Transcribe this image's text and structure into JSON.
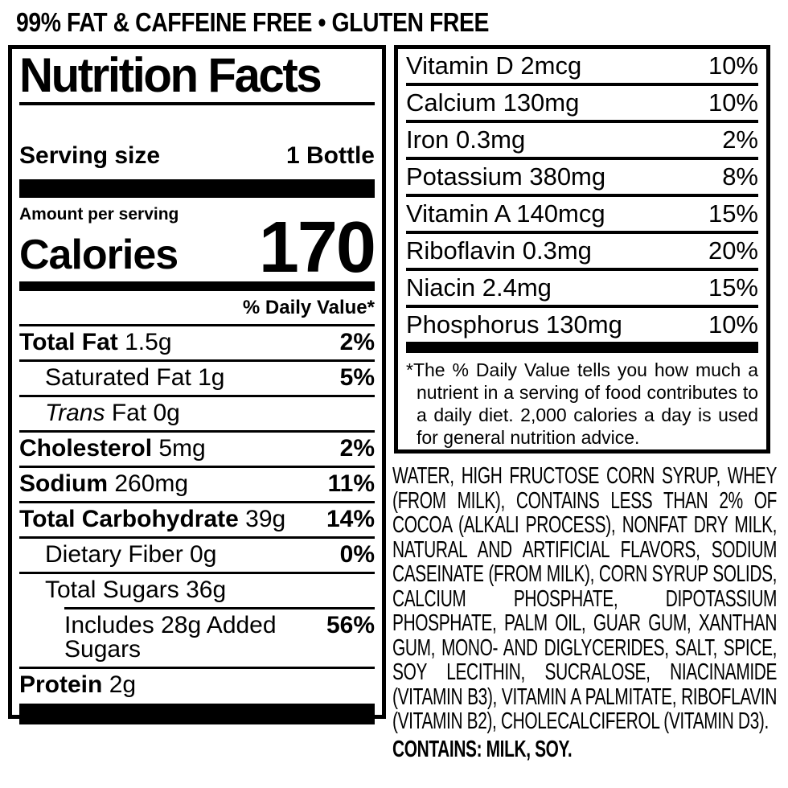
{
  "claim_banner": {
    "text": "99% FAT & CAFFEINE FREE • GLUTEN FREE"
  },
  "nutrition_panel": {
    "title": "Nutrition Facts",
    "serving_size_label": "Serving size",
    "serving_size_value": "1 Bottle",
    "amount_per_serving_label": "Amount per serving",
    "calories_label": "Calories",
    "calories_value": "170",
    "daily_value_header": "% Daily Value*",
    "rows": [
      {
        "bold": "Total Fat",
        "rest": "1.5g",
        "dv": "2%"
      },
      {
        "rest": "Saturated Fat 1g",
        "dv": "5%"
      },
      {
        "italic": "Trans",
        "rest": "Fat 0g",
        "dv": ""
      },
      {
        "bold": "Cholesterol",
        "rest": "5mg",
        "dv": "2%"
      },
      {
        "bold": "Sodium",
        "rest": "260mg",
        "dv": "11%"
      },
      {
        "bold": "Total Carbohydrate",
        "rest": "39g",
        "dv": "14%"
      },
      {
        "rest": "Dietary Fiber 0g",
        "dv": "0%"
      },
      {
        "rest": "Total Sugars 36g",
        "dv": ""
      },
      {
        "rest": "Includes 28g Added Sugars",
        "dv": "56%"
      },
      {
        "bold": "Protein",
        "rest": "2g",
        "dv": ""
      }
    ]
  },
  "vitamins_panel": {
    "rows": [
      {
        "label": "Vitamin D 2mcg",
        "dv": "10%"
      },
      {
        "label": "Calcium 130mg",
        "dv": "10%"
      },
      {
        "label": "Iron 0.3mg",
        "dv": "2%"
      },
      {
        "label": "Potassium 380mg",
        "dv": "8%"
      },
      {
        "label": "Vitamin A 140mcg",
        "dv": "15%"
      },
      {
        "label": "Riboflavin 0.3mg",
        "dv": "20%"
      },
      {
        "label": "Niacin 2.4mg",
        "dv": "15%"
      },
      {
        "label": "Phosphorus 130mg",
        "dv": "10%"
      }
    ],
    "footnote": "*The % Daily Value tells you how much a nutrient in a serving of food contributes to a daily diet. 2,000 calories a day is used for general nutrition advice."
  },
  "ingredients": {
    "text": "WATER, HIGH FRUCTOSE CORN SYRUP, WHEY (FROM MILK), CONTAINS LESS THAN 2% OF COCOA (ALKALI PROCESS), NONFAT DRY MILK, NATURAL AND ARTIFICIAL FLAVORS, SODIUM CASEINATE (FROM MILK), CORN SYRUP SOLIDS, CALCIUM PHOSPHATE, DIPOTASSIUM PHOSPHATE, PALM OIL, GUAR GUM, XANTHAN GUM, MONO- AND DIGLYCERIDES, SALT, SPICE, SOY LECITHIN, SUCRALOSE, NIACINAMIDE (VITAMIN B3), VITAMIN A PALMITATE, RIBOFLAVIN (VITAMIN B2), CHOLECALCIFEROL (VITAMIN D3).",
    "contains": "CONTAINS: MILK, SOY."
  },
  "colors": {
    "text": "#000000",
    "background": "#ffffff"
  }
}
